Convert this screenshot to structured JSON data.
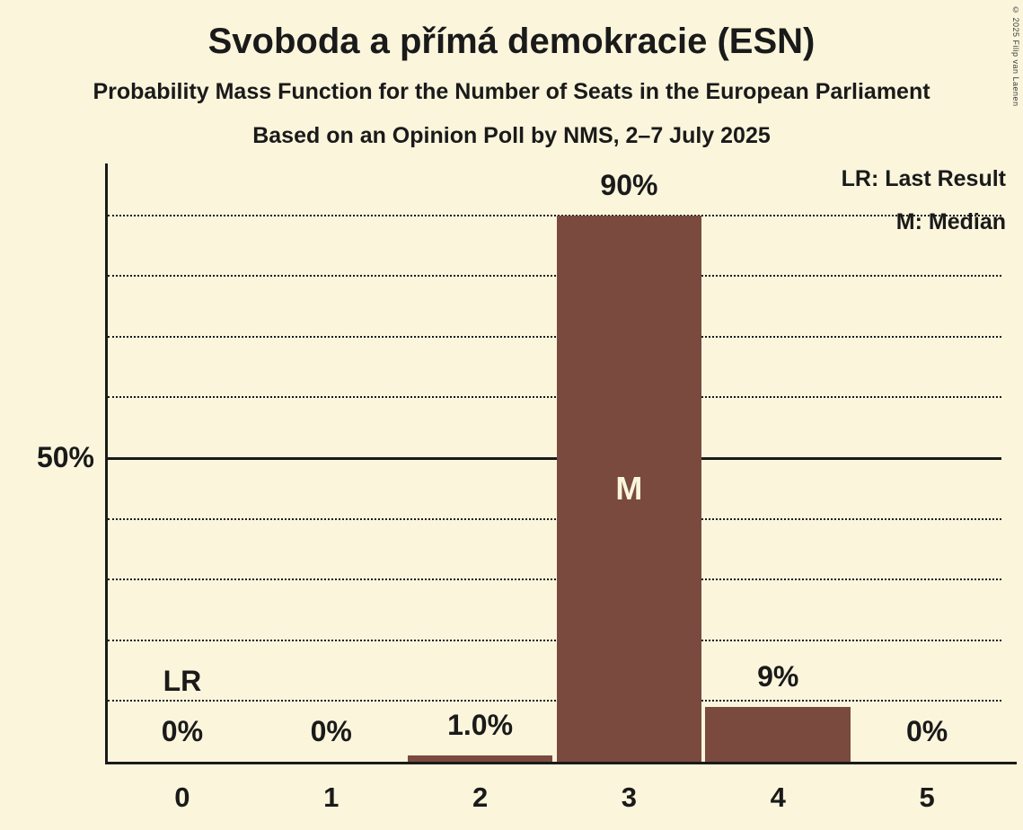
{
  "page": {
    "title": "Svoboda a přímá demokracie (ESN)",
    "subtitle1": "Probability Mass Function for the Number of Seats in the European Parliament",
    "subtitle2": "Based on an Opinion Poll by NMS, 2–7 July 2025",
    "copyright": "© 2025 Filip van Laenen"
  },
  "legend": {
    "lr_label": "LR: Last Result",
    "m_label": "M: Median"
  },
  "axis": {
    "y_tick_label": "50%"
  },
  "colors": {
    "background": "#FBF5DC",
    "bar": "#7A4A3E",
    "text": "#1A1A1A",
    "median_text": "#FBF5DC"
  },
  "chart_data": {
    "type": "bar",
    "title": "Svoboda a přímá demokracie (ESN)",
    "subtitle": "Probability Mass Function for the Number of Seats in the European Parliament",
    "poll_note": "Based on an Opinion Poll by NMS, 2–7 July 2025",
    "categories": [
      "0",
      "1",
      "2",
      "3",
      "4",
      "5"
    ],
    "values": [
      0,
      0,
      1.0,
      90,
      9,
      0
    ],
    "value_labels": [
      "0%",
      "0%",
      "1.0%",
      "90%",
      "9%",
      "0%"
    ],
    "xlabel": "",
    "ylabel": "",
    "ylim": [
      0,
      100
    ],
    "y_tick_percent": 50,
    "gridlines_percent": [
      10,
      20,
      30,
      40,
      60,
      70,
      80,
      90
    ],
    "solid_line_percent": 50,
    "grid": "dotted-horizontal",
    "legend_position": "top-right",
    "median_category": "3",
    "median_label": "M",
    "last_result_category": "0",
    "last_result_label": "LR"
  }
}
